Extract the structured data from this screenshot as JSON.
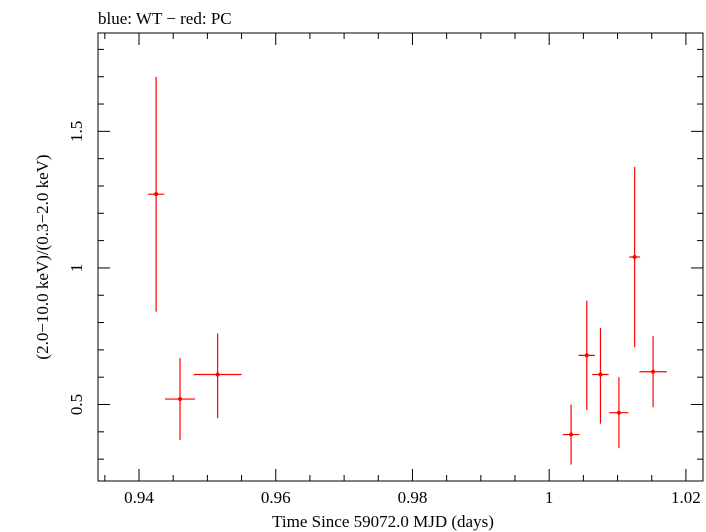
{
  "chart_data": {
    "type": "scatter",
    "title": "blue: WT − red: PC",
    "xlabel": "Time Since 59072.0 MJD (days)",
    "ylabel": "(2.0−10.0 keV)/(0.3−2.0 keV)",
    "xlim": [
      0.934,
      1.0225
    ],
    "ylim": [
      0.22,
      1.86
    ],
    "xticks": [
      {
        "value": 0.94,
        "label": "0.94"
      },
      {
        "value": 0.96,
        "label": "0.96"
      },
      {
        "value": 0.98,
        "label": "0.98"
      },
      {
        "value": 1.0,
        "label": "1"
      },
      {
        "value": 1.02,
        "label": "1.02"
      }
    ],
    "yticks": [
      {
        "value": 0.5,
        "label": "0.5"
      },
      {
        "value": 1.0,
        "label": "1"
      },
      {
        "value": 1.5,
        "label": "1.5"
      }
    ],
    "grid": false,
    "series": [
      {
        "color": "#ff0000",
        "points": [
          {
            "x": 0.9425,
            "xerr": 0.0012,
            "y": 1.27,
            "ylo": 0.84,
            "yhi": 1.7
          },
          {
            "x": 0.946,
            "xerr": 0.0022,
            "y": 0.52,
            "ylo": 0.37,
            "yhi": 0.67
          },
          {
            "x": 0.9515,
            "xerr": 0.0035,
            "y": 0.61,
            "ylo": 0.45,
            "yhi": 0.76
          },
          {
            "x": 1.0032,
            "xerr": 0.0012,
            "y": 0.39,
            "ylo": 0.28,
            "yhi": 0.5
          },
          {
            "x": 1.0055,
            "xerr": 0.0012,
            "y": 0.68,
            "ylo": 0.48,
            "yhi": 0.88
          },
          {
            "x": 1.0075,
            "xerr": 0.0012,
            "y": 0.61,
            "ylo": 0.43,
            "yhi": 0.78
          },
          {
            "x": 1.0102,
            "xerr": 0.0014,
            "y": 0.47,
            "ylo": 0.34,
            "yhi": 0.6
          },
          {
            "x": 1.0125,
            "xerr": 0.0008,
            "y": 1.04,
            "ylo": 0.71,
            "yhi": 1.37
          },
          {
            "x": 1.0152,
            "xerr": 0.002,
            "y": 0.62,
            "ylo": 0.49,
            "yhi": 0.75
          }
        ]
      }
    ]
  }
}
